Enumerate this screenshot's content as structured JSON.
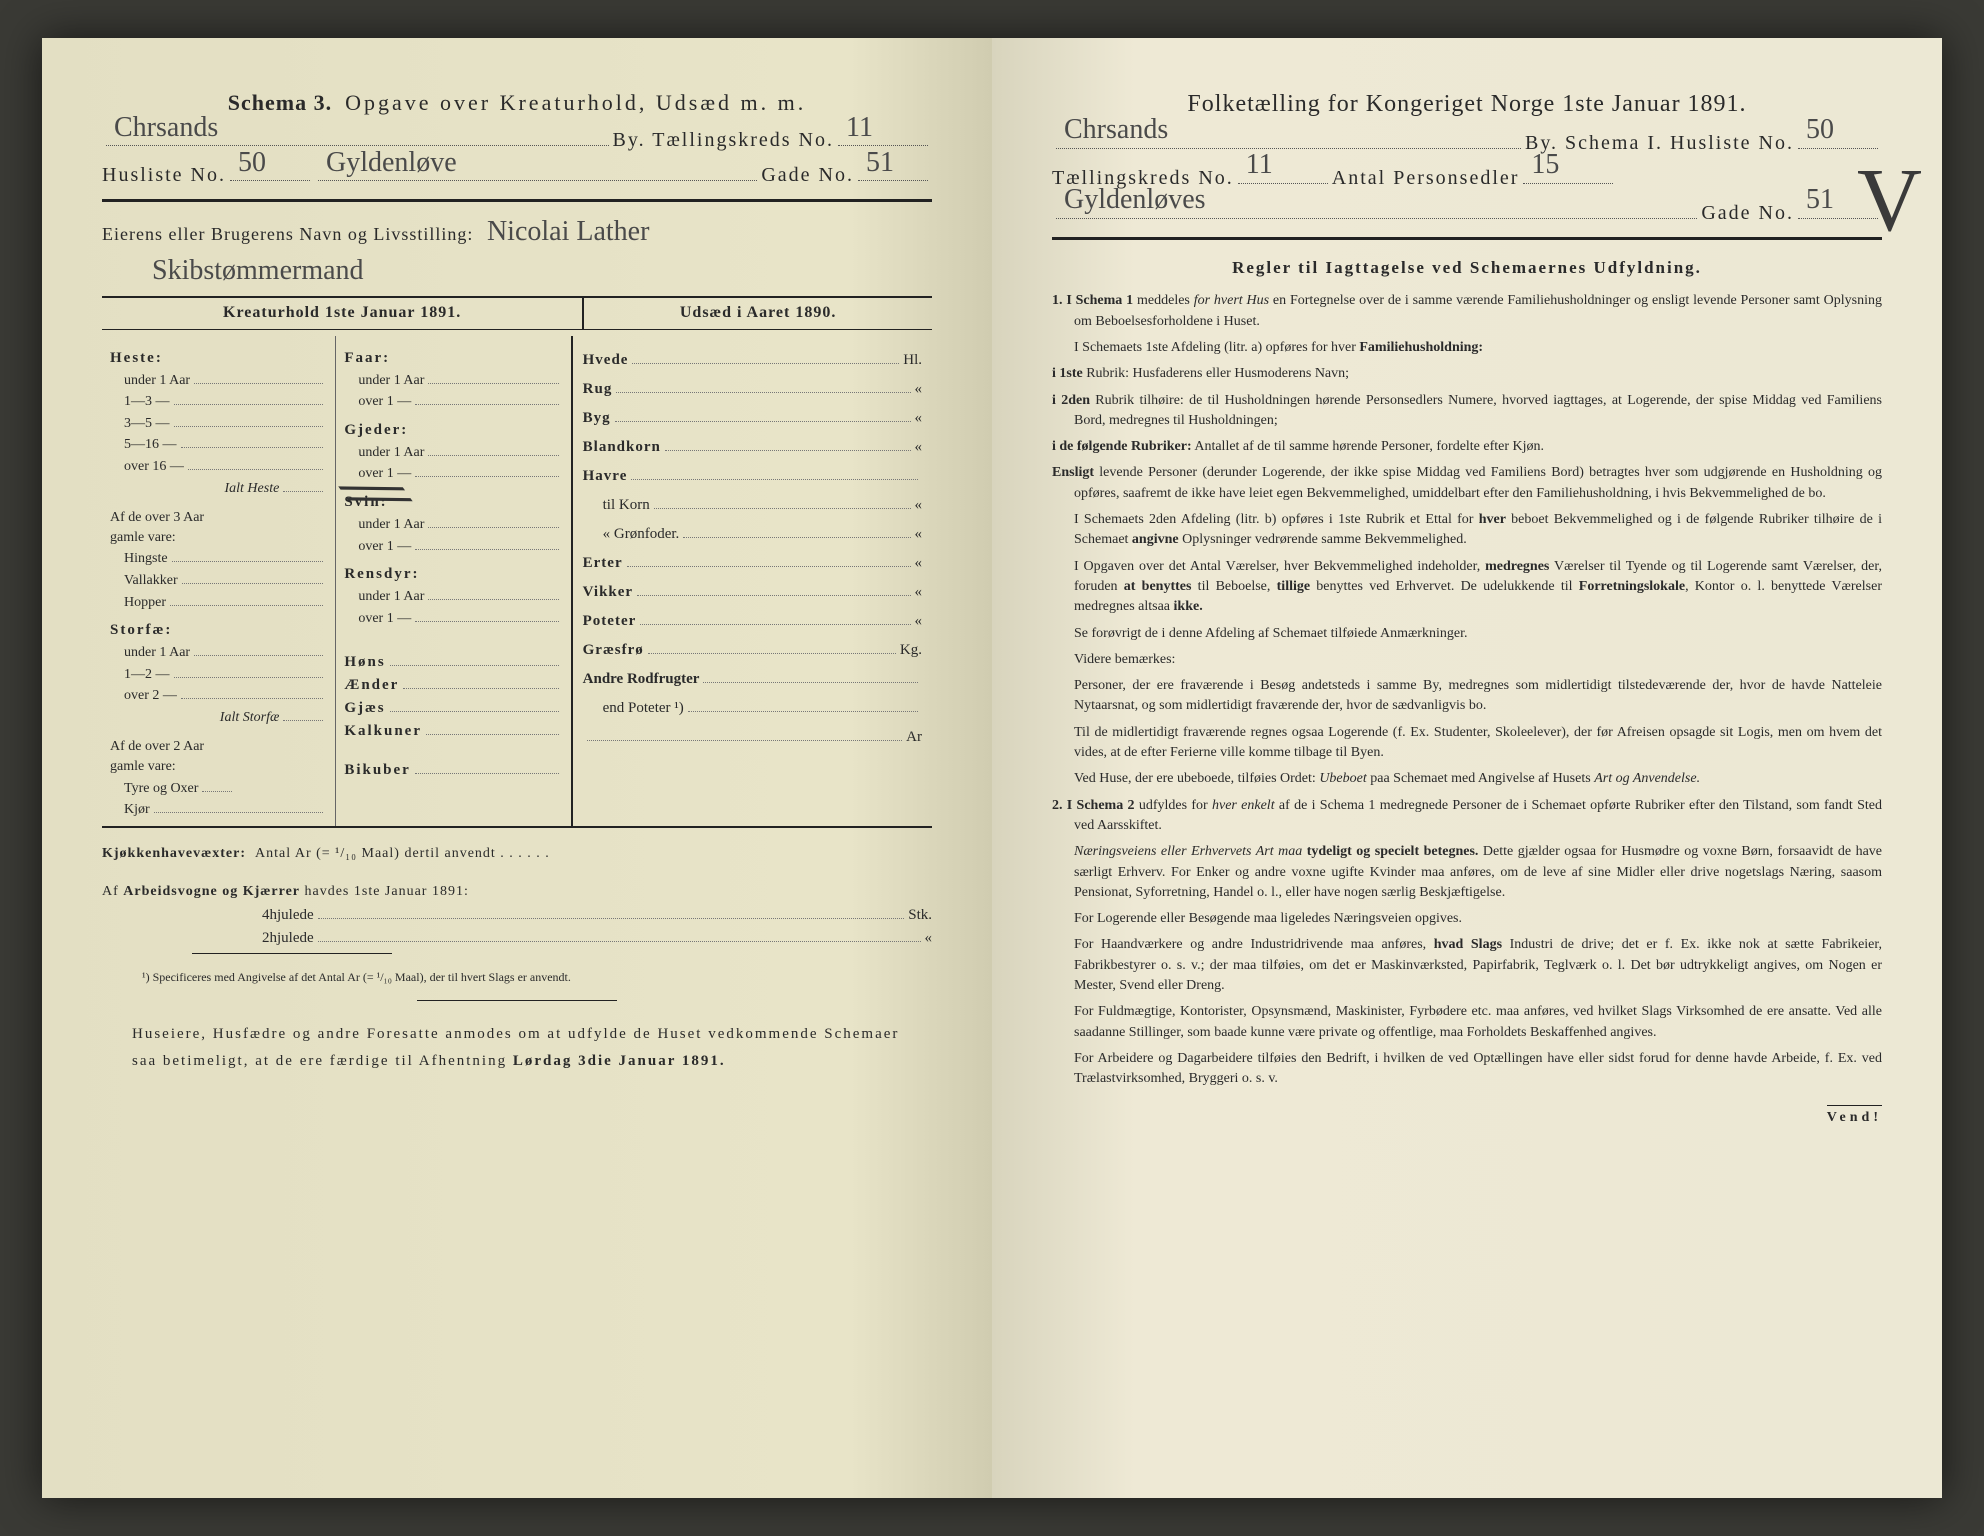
{
  "left": {
    "title_a": "Schema 3.",
    "title_b": "Opgave over Kreaturhold, Udsæd m. m.",
    "by_hand": "Chrsands",
    "by_label_a": "By.  Tællingskreds No.",
    "kreds_no": "11",
    "husliste_label": "Husliste No.",
    "husliste_no": "50",
    "gade_hand": "Gyldenløve",
    "gade_label": "Gade No.",
    "gade_no": "51",
    "owner_label": "Eierens eller Brugerens Navn og Livsstilling:",
    "owner_hand1": "Nicolai Lather",
    "owner_hand2": "Skibstømmermand",
    "col_left_title": "Kreaturhold 1ste Januar 1891.",
    "col_right_title": "Udsæd i Aaret 1890.",
    "heste": "Heste:",
    "heste_rows": [
      "under 1 Aar",
      "1—3   —",
      "3—5   —",
      "5—16 —",
      "over 16 —"
    ],
    "ialt_heste": "Ialt Heste",
    "af_over3": "Af de over 3 Aar",
    "gamle_vare": "gamle vare:",
    "hingste": "Hingste",
    "vallakker": "Vallakker",
    "hopper": "Hopper",
    "storfae": "Storfæ:",
    "storfae_rows": [
      "under 1 Aar",
      "1—2   —",
      "over 2  —"
    ],
    "ialt_storfae": "Ialt Storfæ",
    "af_over2": "Af de over 2 Aar",
    "tyre": "Tyre og Oxer",
    "kjor": "Kjør",
    "faar": "Faar:",
    "faar_rows": [
      "under 1 Aar",
      "over 1   —"
    ],
    "gjeder": "Gjeder:",
    "gjeder_rows": [
      "under 1 Aar",
      "over 1   —"
    ],
    "svin": "Svin:",
    "svin_rows": [
      "under 1 Aar",
      "over 1   —"
    ],
    "rensdyr": "Rensdyr:",
    "rensdyr_rows": [
      "under 1 Aar",
      "over 1   —"
    ],
    "hons": "Høns",
    "aender": "Ænder",
    "gjaes": "Gjæs",
    "kalkuner": "Kalkuner",
    "bikuber": "Bikuber",
    "seeds": [
      "Hvede",
      "Rug",
      "Byg",
      "Blandkorn",
      "Havre",
      "  til Korn",
      "  « Grønfoder.",
      "Erter",
      "Vikker",
      "Poteter",
      "Græsfrø",
      "Andre Rodfrugter",
      "  end Poteter ¹)"
    ],
    "seed_units": [
      "Hl.",
      "«",
      "«",
      "«",
      "",
      "«",
      "«",
      "«",
      "«",
      "«",
      "Kg.",
      "",
      ""
    ],
    "ar_label": "Ar",
    "kjokken": "Kjøkkenhavevæxter:  Antal Ar (= ¹/₁₀ Maal) dertil anvendt",
    "arbeid_a": "Af",
    "arbeid_b": "Arbeidsvogne og Kjærrer",
    "arbeid_c": "havdes 1ste Januar 1891:",
    "hjul4": "4hjulede",
    "hjul2": "2hjulede",
    "stk": "Stk.",
    "note": "¹) Specificeres med Angivelse af det Antal Ar (= ¹/₁₀ Maal), der til hvert Slags er anvendt.",
    "closing": "Huseiere, Husfædre og andre Foresatte anmodes om at udfylde de Huset vedkommende Schemaer saa betimeligt, at de ere færdige til Afhentning",
    "closing_bold": "Lørdag 3die Januar 1891."
  },
  "right": {
    "title": "Folketælling for Kongeriget Norge 1ste Januar 1891.",
    "by_hand": "Chrsands",
    "by_label": "By.   Schema I.   Husliste No.",
    "husliste_no": "50",
    "kreds_label": "Tællingskreds No.",
    "kreds_no": "11",
    "antal_label": "Antal Personsedler",
    "antal_no": "15",
    "gade_hand": "Gyldenløves",
    "gade_label": "Gade No.",
    "gade_no": "51",
    "big_v": "V",
    "rules_title": "Regler til Iagttagelse ved Schemaernes Udfyldning.",
    "p1a": "1.  I Schema 1",
    "p1b": " meddeles ",
    "p1c": "for hvert Hus",
    "p1d": " en Fortegnelse over de i samme værende Familiehusholdninger og ensligt levende Personer samt Oplysning om Beboelsesforholdene i Huset.",
    "p2": "I Schemaets 1ste Afdeling (litr. a) opføres for hver ",
    "p2b": "Familiehusholdning:",
    "p3a": "i 1ste",
    "p3b": " Rubrik: Husfaderens eller Husmoderens Navn;",
    "p4a": "i 2den",
    "p4b": " Rubrik tilhøire: de til Husholdningen hørende Personsedlers Numere, hvorved iagttages, at Logerende, der spise Middag ved Familiens Bord, medregnes til Husholdningen;",
    "p5a": "i de følgende Rubriker:",
    "p5b": " Antallet af de til samme hørende Personer, fordelte efter Kjøn.",
    "p6a": "Ensligt",
    "p6b": " levende Personer (derunder Logerende, der ikke spise Middag ved Familiens Bord) betragtes hver som udgjørende en Husholdning og opføres, saafremt de ikke have leiet egen Bekvemmelighed, umiddelbart efter den Familiehusholdning, i hvis Bekvemmelighed de bo.",
    "p7a": "I Schemaets 2den Afdeling (litr. b) opføres i 1ste Rubrik et Ettal for ",
    "p7b": "hver",
    "p7c": " beboet Bekvemmelighed og i de følgende Rubriker tilhøire de i Schemaet ",
    "p7d": "angivne",
    "p7e": " Oplysninger vedrørende samme Bekvemmelighed.",
    "p8a": "I Opgaven over det Antal Værelser, hver Bekvemmelighed indeholder, ",
    "p8b": "medregnes",
    "p8c": " Værelser til Tyende og til Logerende samt Værelser, der, foruden ",
    "p8d": "at benyttes",
    "p8e": " til Beboelse, ",
    "p8f": "tillige",
    "p8g": " benyttes ved Erhvervet. De udelukkende til ",
    "p8h": "Forretningslokale",
    "p8i": ", Kontor o. l. benyttede Værelser medregnes altsaa ",
    "p8j": "ikke.",
    "p9": "Se forøvrigt de i denne Afdeling af Schemaet tilføiede Anmærkninger.",
    "p10": "Videre bemærkes:",
    "p11": "Personer, der ere fraværende i Besøg andetsteds i samme By, medregnes som midlertidigt tilstedeværende der, hvor de havde Natteleie Nytaarsnat, og som midlertidigt fraværende der, hvor de sædvanligvis bo.",
    "p12": "Til de midlertidigt fraværende regnes ogsaa Logerende (f. Ex. Studenter, Skoleelever), der før Afreisen opsagde sit Logis, men om hvem det vides, at de efter Ferierne ville komme tilbage til Byen.",
    "p13a": "Ved Huse, der ere ubeboede, tilføies Ordet: ",
    "p13b": "Ubeboet",
    "p13c": " paa Schemaet med Angivelse af Husets ",
    "p13d": "Art og Anvendelse.",
    "p14a": "2.  I Schema 2",
    "p14b": " udfyldes for ",
    "p14c": "hver enkelt",
    "p14d": " af de i Schema 1 medregnede Personer de i Schemaet opførte Rubriker efter den Tilstand, som fandt Sted ved Aarsskiftet.",
    "p15a": "Næringsveiens eller Erhvervets Art maa ",
    "p15b": "tydeligt og specielt betegnes.",
    "p15c": " Dette gjælder ogsaa for Husmødre og voxne Børn, forsaavidt de have særligt Erhverv. For Enker og andre voxne ugifte Kvinder maa anføres, om de leve af sine Midler eller drive nogetslags Næring, saasom Pensionat, Syforretning, Handel o. l., eller have nogen særlig Beskjæftigelse.",
    "p16": "For Logerende eller Besøgende maa ligeledes Næringsveien opgives.",
    "p17a": "For Haandværkere og andre Industridrivende maa anføres, ",
    "p17b": "hvad Slags",
    "p17c": " Industri de drive; det er f. Ex. ikke nok at sætte Fabrikeier, Fabrikbestyrer o. s. v.; der maa tilføies, om det er Maskinværksted, Papirfabrik, Teglværk o. l. Det bør udtrykkeligt angives, om Nogen er Mester, Svend eller Dreng.",
    "p18": "For Fuldmægtige, Kontorister, Opsynsmænd, Maskinister, Fyrbødere etc. maa anføres, ved hvilket Slags Virksomhed de ere ansatte. Ved alle saadanne Stillinger, som baade kunne være private og offentlige, maa Forholdets Beskaffenhed angives.",
    "p19": "For Arbeidere og Dagarbeidere tilføies den Bedrift, i hvilken de ved Optællingen have eller sidst forud for denne havde Arbeide, f. Ex. ved Trælastvirksomhed, Bryggeri o. s. v.",
    "vend": "Vend!"
  }
}
